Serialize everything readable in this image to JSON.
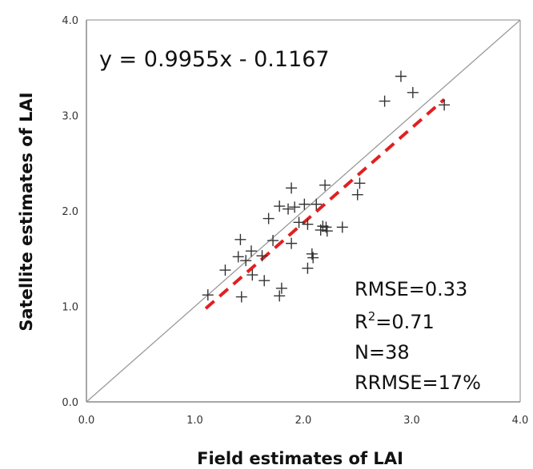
{
  "chart_data": {
    "type": "scatter",
    "title": "",
    "xlabel": "Field estimates of LAI",
    "ylabel": "Satellite estimates of LAI",
    "xlim": [
      0,
      4
    ],
    "ylim": [
      0,
      4
    ],
    "x_ticks": [
      "0.0",
      "1.0",
      "2.0",
      "3.0",
      "4.0"
    ],
    "y_ticks": [
      "0.0",
      "1.0",
      "2.0",
      "3.0",
      "4.0"
    ],
    "grid": false,
    "marker": "plus",
    "marker_color": "#333333",
    "equation": "y = 0.9955x - 0.1167",
    "stats": {
      "rmse": "RMSE=0.33",
      "r2_label": "R",
      "r2_sup": "2",
      "r2_value": "=0.71",
      "n": "N=38",
      "rrmse": "RRMSE=17%"
    },
    "one_to_one_line": {
      "color": "#9a9a9a",
      "from": [
        0,
        0
      ],
      "to": [
        4,
        4
      ]
    },
    "regression_line": {
      "color": "#e02020",
      "dashed": true,
      "slope": 0.9955,
      "intercept": -0.1167,
      "x_range": [
        1.1,
        3.3
      ]
    },
    "points": [
      {
        "x": 1.12,
        "y": 1.12
      },
      {
        "x": 1.28,
        "y": 1.38
      },
      {
        "x": 1.4,
        "y": 1.52
      },
      {
        "x": 1.42,
        "y": 1.7
      },
      {
        "x": 1.43,
        "y": 1.1
      },
      {
        "x": 1.47,
        "y": 1.48
      },
      {
        "x": 1.52,
        "y": 1.58
      },
      {
        "x": 1.53,
        "y": 1.33
      },
      {
        "x": 1.62,
        "y": 1.53
      },
      {
        "x": 1.64,
        "y": 1.27
      },
      {
        "x": 1.68,
        "y": 1.92
      },
      {
        "x": 1.72,
        "y": 1.69
      },
      {
        "x": 1.78,
        "y": 2.05
      },
      {
        "x": 1.78,
        "y": 1.11
      },
      {
        "x": 1.8,
        "y": 1.19
      },
      {
        "x": 1.86,
        "y": 2.02
      },
      {
        "x": 1.89,
        "y": 2.24
      },
      {
        "x": 1.89,
        "y": 1.66
      },
      {
        "x": 1.92,
        "y": 2.04
      },
      {
        "x": 1.96,
        "y": 1.88
      },
      {
        "x": 2.01,
        "y": 2.07
      },
      {
        "x": 2.04,
        "y": 1.86
      },
      {
        "x": 2.04,
        "y": 1.4
      },
      {
        "x": 2.08,
        "y": 1.55
      },
      {
        "x": 2.09,
        "y": 1.51
      },
      {
        "x": 2.12,
        "y": 2.07
      },
      {
        "x": 2.16,
        "y": 1.8
      },
      {
        "x": 2.18,
        "y": 1.84
      },
      {
        "x": 2.2,
        "y": 2.27
      },
      {
        "x": 2.21,
        "y": 1.83
      },
      {
        "x": 2.22,
        "y": 1.79
      },
      {
        "x": 2.36,
        "y": 1.83
      },
      {
        "x": 2.5,
        "y": 2.17
      },
      {
        "x": 2.52,
        "y": 2.29
      },
      {
        "x": 2.75,
        "y": 3.15
      },
      {
        "x": 2.9,
        "y": 3.41
      },
      {
        "x": 3.01,
        "y": 3.24
      },
      {
        "x": 3.3,
        "y": 3.11
      }
    ]
  }
}
